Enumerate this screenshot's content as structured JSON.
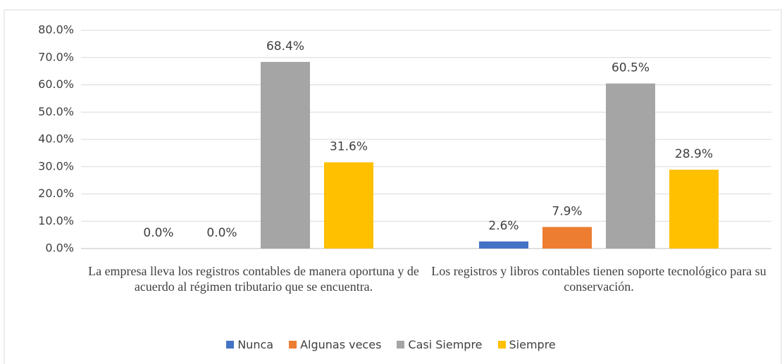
{
  "chart_data": {
    "type": "bar",
    "categories": [
      "La empresa lleva los registros contables de manera oportuna y de acuerdo al régimen tributario que se encuentra.",
      "Los registros y libros contables tienen soporte tecnológico para su conservación."
    ],
    "series": [
      {
        "name": "Nunca",
        "color": "#4472c4",
        "values": [
          0,
          2.6
        ],
        "value_labels": [
          "0.0%",
          "2.6%"
        ]
      },
      {
        "name": "Algunas veces",
        "color": "#ed7d31",
        "values": [
          0,
          7.9
        ],
        "value_labels": [
          "0.0%",
          "7.9%"
        ]
      },
      {
        "name": "Casi Siempre",
        "color": "#a5a5a5",
        "values": [
          68.4,
          60.5
        ],
        "value_labels": [
          "68.4%",
          "60.5%"
        ]
      },
      {
        "name": "Siempre",
        "color": "#ffc000",
        "values": [
          31.6,
          28.9
        ],
        "value_labels": [
          "31.6%",
          "28.9%"
        ]
      }
    ],
    "ylim": [
      0,
      80
    ],
    "yticks": [
      {
        "value": 0,
        "label": "0.0%"
      },
      {
        "value": 10,
        "label": "10.0%"
      },
      {
        "value": 20,
        "label": "20.0%"
      },
      {
        "value": 30,
        "label": "30.0%"
      },
      {
        "value": 40,
        "label": "40.0%"
      },
      {
        "value": 50,
        "label": "50.0%"
      },
      {
        "value": 60,
        "label": "60.0%"
      },
      {
        "value": 70,
        "label": "70.0%"
      },
      {
        "value": 80,
        "label": "80.0%"
      }
    ],
    "grid": true,
    "legend": "bottom"
  }
}
